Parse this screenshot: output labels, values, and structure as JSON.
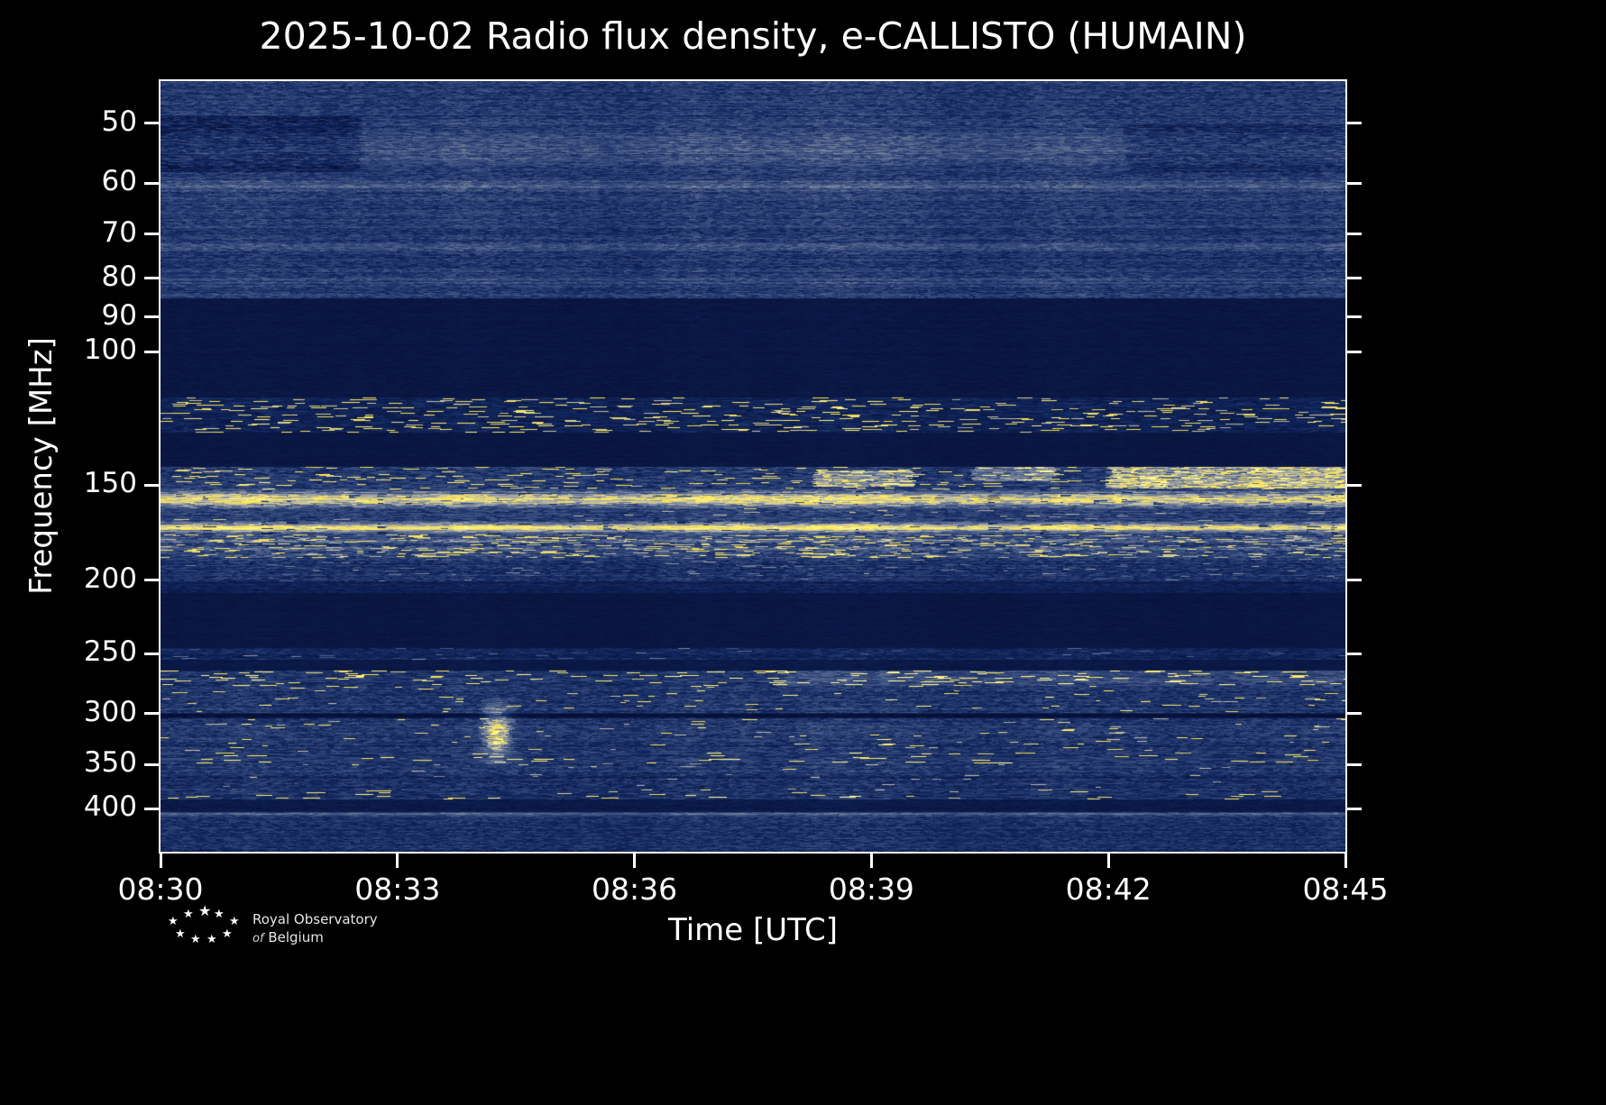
{
  "title": "2025-10-02 Radio flux density, e-CALLISTO (HUMAIN)",
  "axes": {
    "x_label": "Time [UTC]",
    "y_label": "Frequency [MHz]"
  },
  "logo": {
    "line1": "Royal Observatory",
    "line2_italic": "of",
    "line2_rest": "Belgium"
  },
  "chart_data": {
    "type": "heatmap",
    "title": "2025-10-02 Radio flux density, e-CALLISTO (HUMAIN)",
    "xlabel": "Time [UTC]",
    "ylabel": "Frequency [MHz]",
    "x_ticks": [
      "08:30",
      "08:33",
      "08:36",
      "08:39",
      "08:42",
      "08:45"
    ],
    "y_ticks": [
      50,
      60,
      70,
      80,
      90,
      100,
      150,
      200,
      250,
      300,
      350,
      400
    ],
    "x_range_utc": [
      "08:30",
      "08:45"
    ],
    "y_range_mhz": [
      44,
      456
    ],
    "y_scale": "log10, frequency increases downward",
    "grid": false,
    "legend": "none (no colorbar shown)",
    "background": "#000000",
    "colormap": {
      "low": "#050c30",
      "mid": "#46608c",
      "high": "#ffe94a"
    },
    "bands": [
      {
        "f_lo": 44,
        "f_hi": 50,
        "base": 0.3,
        "noise": 0.11,
        "run": 4,
        "rowvar": 0.05,
        "note": "broadband blue noise at top edge"
      },
      {
        "f_lo": 50,
        "f_hi": 58,
        "base": 0.33,
        "noise": 0.12,
        "run": 5,
        "rowvar": 0.06,
        "note": "noise with pale horizontal streaks; quieter before 08:32 and after 08:42"
      },
      {
        "f_lo": 58,
        "f_hi": 85,
        "base": 0.3,
        "noise": 0.11,
        "run": 4,
        "rowvar": 0.06,
        "note": "blue noise with pale lines near 60.5, 73 and 81 MHz"
      },
      {
        "f_lo": 85,
        "f_hi": 115,
        "base": 0.085,
        "noise": 0.025,
        "run": 6,
        "rowvar": 0.01,
        "note": "quiet dark band 85-115 MHz"
      },
      {
        "f_lo": 115,
        "f_hi": 128,
        "base": 0.17,
        "noise": 0.09,
        "run": 7,
        "rowvar": 0.03,
        "sp": 0.055,
        "spv": 0.82,
        "note": "RFI band with bright white/yellow dashes ~118-125 MHz"
      },
      {
        "f_lo": 128,
        "f_hi": 142,
        "base": 0.085,
        "noise": 0.02,
        "run": 6,
        "rowvar": 0.01,
        "note": "quiet dark band"
      },
      {
        "f_lo": 142,
        "f_hi": 152,
        "base": 0.3,
        "noise": 0.13,
        "run": 6,
        "rowvar": 0.05,
        "sp": 0.04,
        "spv": 0.85,
        "note": "speckled band, strongly brightening after 08:41"
      },
      {
        "f_lo": 152,
        "f_hi": 161,
        "base": 0.58,
        "noise": 0.14,
        "run": 8,
        "rowvar": 0.08,
        "gaps": true,
        "profile": "peak",
        "note": "continuous bright yellow emission band ~155-158 MHz with thin vertical gaps"
      },
      {
        "f_lo": 161,
        "f_hi": 167,
        "base": 0.34,
        "noise": 0.12,
        "run": 5,
        "rowvar": 0.05,
        "sp": 0.01,
        "spv": 0.7,
        "note": "pale blue noise between the two bright bands"
      },
      {
        "f_lo": 167,
        "f_hi": 174,
        "base": 0.6,
        "noise": 0.12,
        "run": 8,
        "rowvar": 0.07,
        "gaps": true,
        "profile": "peak",
        "note": "continuous bright yellow emission band ~169-172 MHz"
      },
      {
        "f_lo": 174,
        "f_hi": 187,
        "base": 0.36,
        "noise": 0.14,
        "run": 5,
        "rowvar": 0.06,
        "sp": 0.07,
        "spv": 0.78,
        "note": "dense yellow speckle rows ~176-184 MHz"
      },
      {
        "f_lo": 187,
        "f_hi": 201,
        "base": 0.27,
        "noise": 0.11,
        "run": 4,
        "rowvar": 0.05,
        "sp": 0.012,
        "spv": 0.55,
        "note": "blue noise down to ~200 MHz"
      },
      {
        "f_lo": 201,
        "f_hi": 208,
        "base": 0.17,
        "noise": 0.07,
        "run": 4,
        "rowvar": 0.03,
        "note": "fading noise"
      },
      {
        "f_lo": 208,
        "f_hi": 246,
        "base": 0.085,
        "noise": 0.02,
        "run": 6,
        "rowvar": 0.01,
        "note": "quiet dark band 210-245 MHz"
      },
      {
        "f_lo": 246,
        "f_hi": 255,
        "base": 0.2,
        "noise": 0.09,
        "run": 5,
        "rowvar": 0.03,
        "sp": 0.012,
        "spv": 0.5,
        "note": "thin speckled band near 250 MHz"
      },
      {
        "f_lo": 255,
        "f_hi": 263,
        "base": 0.1,
        "noise": 0.03,
        "run": 6,
        "rowvar": 0.01,
        "note": "quiet gap"
      },
      {
        "f_lo": 263,
        "f_hi": 276,
        "base": 0.27,
        "noise": 0.11,
        "run": 7,
        "rowvar": 0.05,
        "sp": 0.05,
        "spv": 0.9,
        "note": "row of bright yellow dashes ~265-273 MHz"
      },
      {
        "f_lo": 276,
        "f_hi": 299,
        "base": 0.29,
        "noise": 0.11,
        "run": 4,
        "rowvar": 0.05,
        "sp": 0.01,
        "spv": 0.85,
        "note": "blue noise with scattered yellow bursts"
      },
      {
        "f_lo": 299,
        "f_hi": 304,
        "base": 0.13,
        "noise": 0.05,
        "run": 5,
        "rowvar": 0.02,
        "note": "dark lane near 300 MHz"
      },
      {
        "f_lo": 304,
        "f_hi": 337,
        "base": 0.29,
        "noise": 0.11,
        "run": 4,
        "rowvar": 0.05,
        "sp": 0.007,
        "spv": 0.8,
        "note": "blue noise"
      },
      {
        "f_lo": 337,
        "f_hi": 349,
        "base": 0.28,
        "noise": 0.11,
        "run": 8,
        "rowvar": 0.05,
        "sp": 0.022,
        "spv": 0.9,
        "note": "yellow dash bursts ~340-345 MHz"
      },
      {
        "f_lo": 349,
        "f_hi": 379,
        "base": 0.27,
        "noise": 0.11,
        "run": 4,
        "rowvar": 0.05,
        "sp": 0.005,
        "spv": 0.7,
        "note": "blue noise"
      },
      {
        "f_lo": 379,
        "f_hi": 389,
        "base": 0.25,
        "noise": 0.11,
        "run": 7,
        "rowvar": 0.04,
        "sp": 0.018,
        "spv": 0.88,
        "note": "yellow dash bursts ~380-385 MHz"
      },
      {
        "f_lo": 389,
        "f_hi": 404,
        "base": 0.11,
        "noise": 0.04,
        "run": 5,
        "rowvar": 0.02,
        "note": "quiet dark band"
      },
      {
        "f_lo": 404,
        "f_hi": 410,
        "base": 0.38,
        "noise": 0.09,
        "run": 6,
        "rowvar": 0.04,
        "note": "thin pale continuous line near 406 MHz"
      },
      {
        "f_lo": 410,
        "f_hi": 456,
        "base": 0.25,
        "noise": 0.1,
        "run": 4,
        "rowvar": 0.04,
        "note": "blue noise to bottom edge"
      }
    ],
    "hlines": [
      {
        "f": 54.5,
        "df": 2.5,
        "boost": 0.09
      },
      {
        "f": 60.5,
        "df": 1.0,
        "boost": 0.16
      },
      {
        "f": 73,
        "df": 1.0,
        "boost": 0.08
      },
      {
        "f": 81,
        "df": 1.0,
        "boost": 0.06
      },
      {
        "f": 177.5,
        "df": 1.2,
        "boost": 0.18
      },
      {
        "f": 181.5,
        "df": 1.0,
        "boost": 0.1
      },
      {
        "f": 301.5,
        "df": 1.5,
        "boost": -0.12
      },
      {
        "f": 331,
        "df": 1.2,
        "boost": -0.1
      },
      {
        "f": 344,
        "df": 1.2,
        "boost": 0.05
      },
      {
        "f": 364,
        "df": 1.0,
        "boost": -0.08
      },
      {
        "f": 406.5,
        "df": 1.2,
        "boost": 0.1
      }
    ],
    "features": [
      {
        "name": "quiet patch 50-58 MHz before 08:32.5",
        "t": [
          0.0,
          0.17
        ],
        "f": [
          49,
          58
        ],
        "delta": -0.14
      },
      {
        "name": "quiet patch 50-58 MHz after 08:42",
        "t": [
          0.815,
          1.0
        ],
        "f": [
          50,
          58
        ],
        "delta": -0.09
      },
      {
        "name": "bright vertical streak ~08:34.3 spanning 290-350 MHz",
        "t": [
          0.268,
          0.3
        ],
        "f": [
          286,
          350
        ],
        "delta": 0.52,
        "gauss": true
      },
      {
        "name": "bright segment 144-150 MHz ~08:38.3-08:39.5",
        "t": [
          0.553,
          0.635
        ],
        "f": [
          143.5,
          150.5
        ],
        "delta": 0.3
      },
      {
        "name": "bright segment 142-148 MHz ~08:40.3-08:41.3",
        "t": [
          0.685,
          0.755
        ],
        "f": [
          142,
          148
        ],
        "delta": 0.27
      },
      {
        "name": "bright segment 142-151 MHz after 08:42",
        "t": [
          0.8,
          1.0
        ],
        "f": [
          142,
          151.5
        ],
        "delta": 0.42
      },
      {
        "name": "denser yellow dashes 263-276 MHz in right half",
        "t": [
          0.52,
          1.0
        ],
        "f": [
          263,
          276
        ],
        "delta": 0.1
      }
    ]
  }
}
